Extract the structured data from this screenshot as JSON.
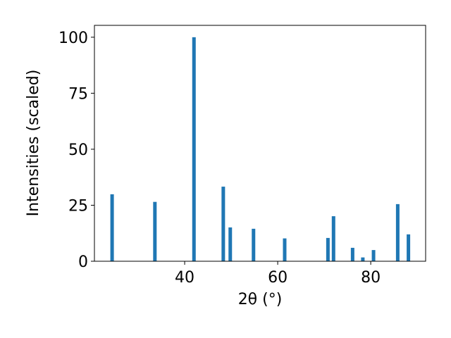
{
  "chart_data": {
    "type": "bar",
    "x_label": "2θ (°)",
    "y_label": "Intensities (scaled)",
    "x": [
      24.4,
      33.6,
      42.0,
      48.3,
      49.8,
      54.8,
      61.5,
      70.8,
      72.0,
      76.1,
      78.3,
      80.6,
      85.8,
      88.1
    ],
    "values": [
      29.9,
      26.5,
      100,
      33.3,
      15.1,
      14.5,
      10.2,
      10.4,
      20.1,
      6.0,
      1.7,
      5.0,
      25.5,
      12.0
    ],
    "color": "#1f77b4",
    "xlim": [
      20.6,
      91.8
    ],
    "xticks": [
      40,
      60,
      80
    ],
    "ylim": [
      0,
      105.3
    ],
    "yticks": [
      0,
      25,
      50,
      75,
      100
    ],
    "grid": false
  }
}
